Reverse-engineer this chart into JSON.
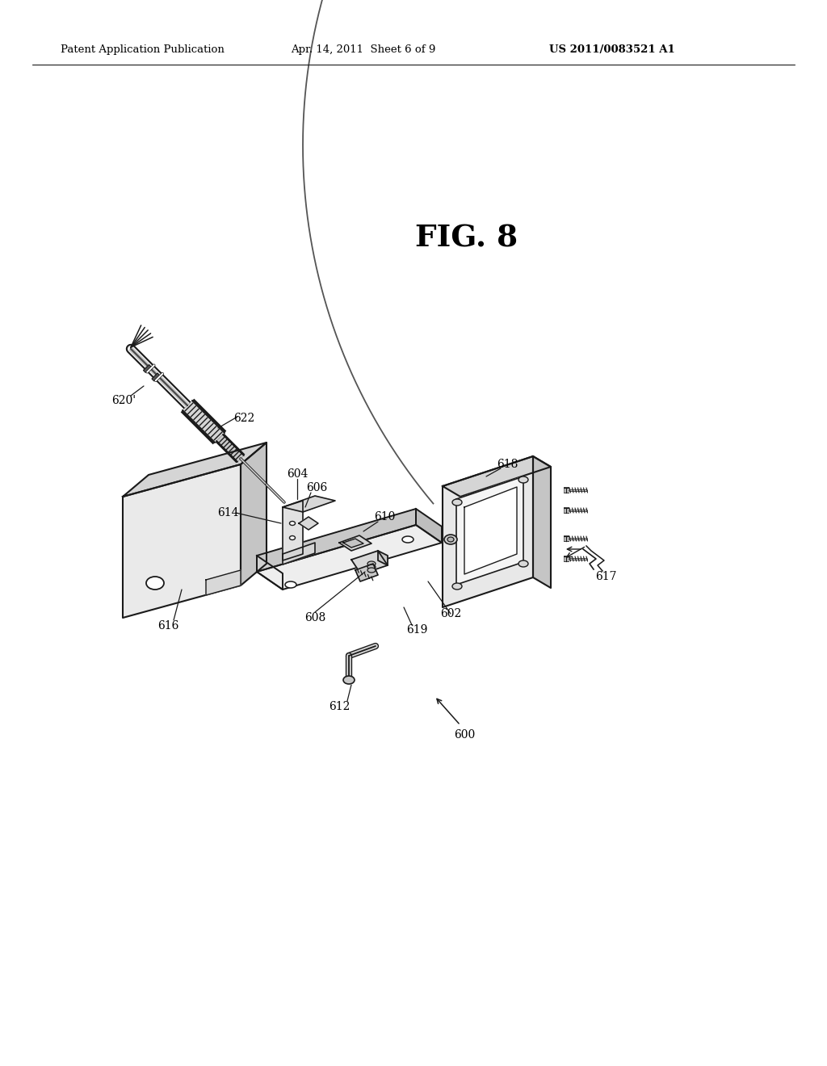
{
  "bg_color": "#ffffff",
  "line_color": "#1a1a1a",
  "header_left": "Patent Application Publication",
  "header_center": "Apr. 14, 2011  Sheet 6 of 9",
  "header_right": "US 2011/0083521 A1"
}
